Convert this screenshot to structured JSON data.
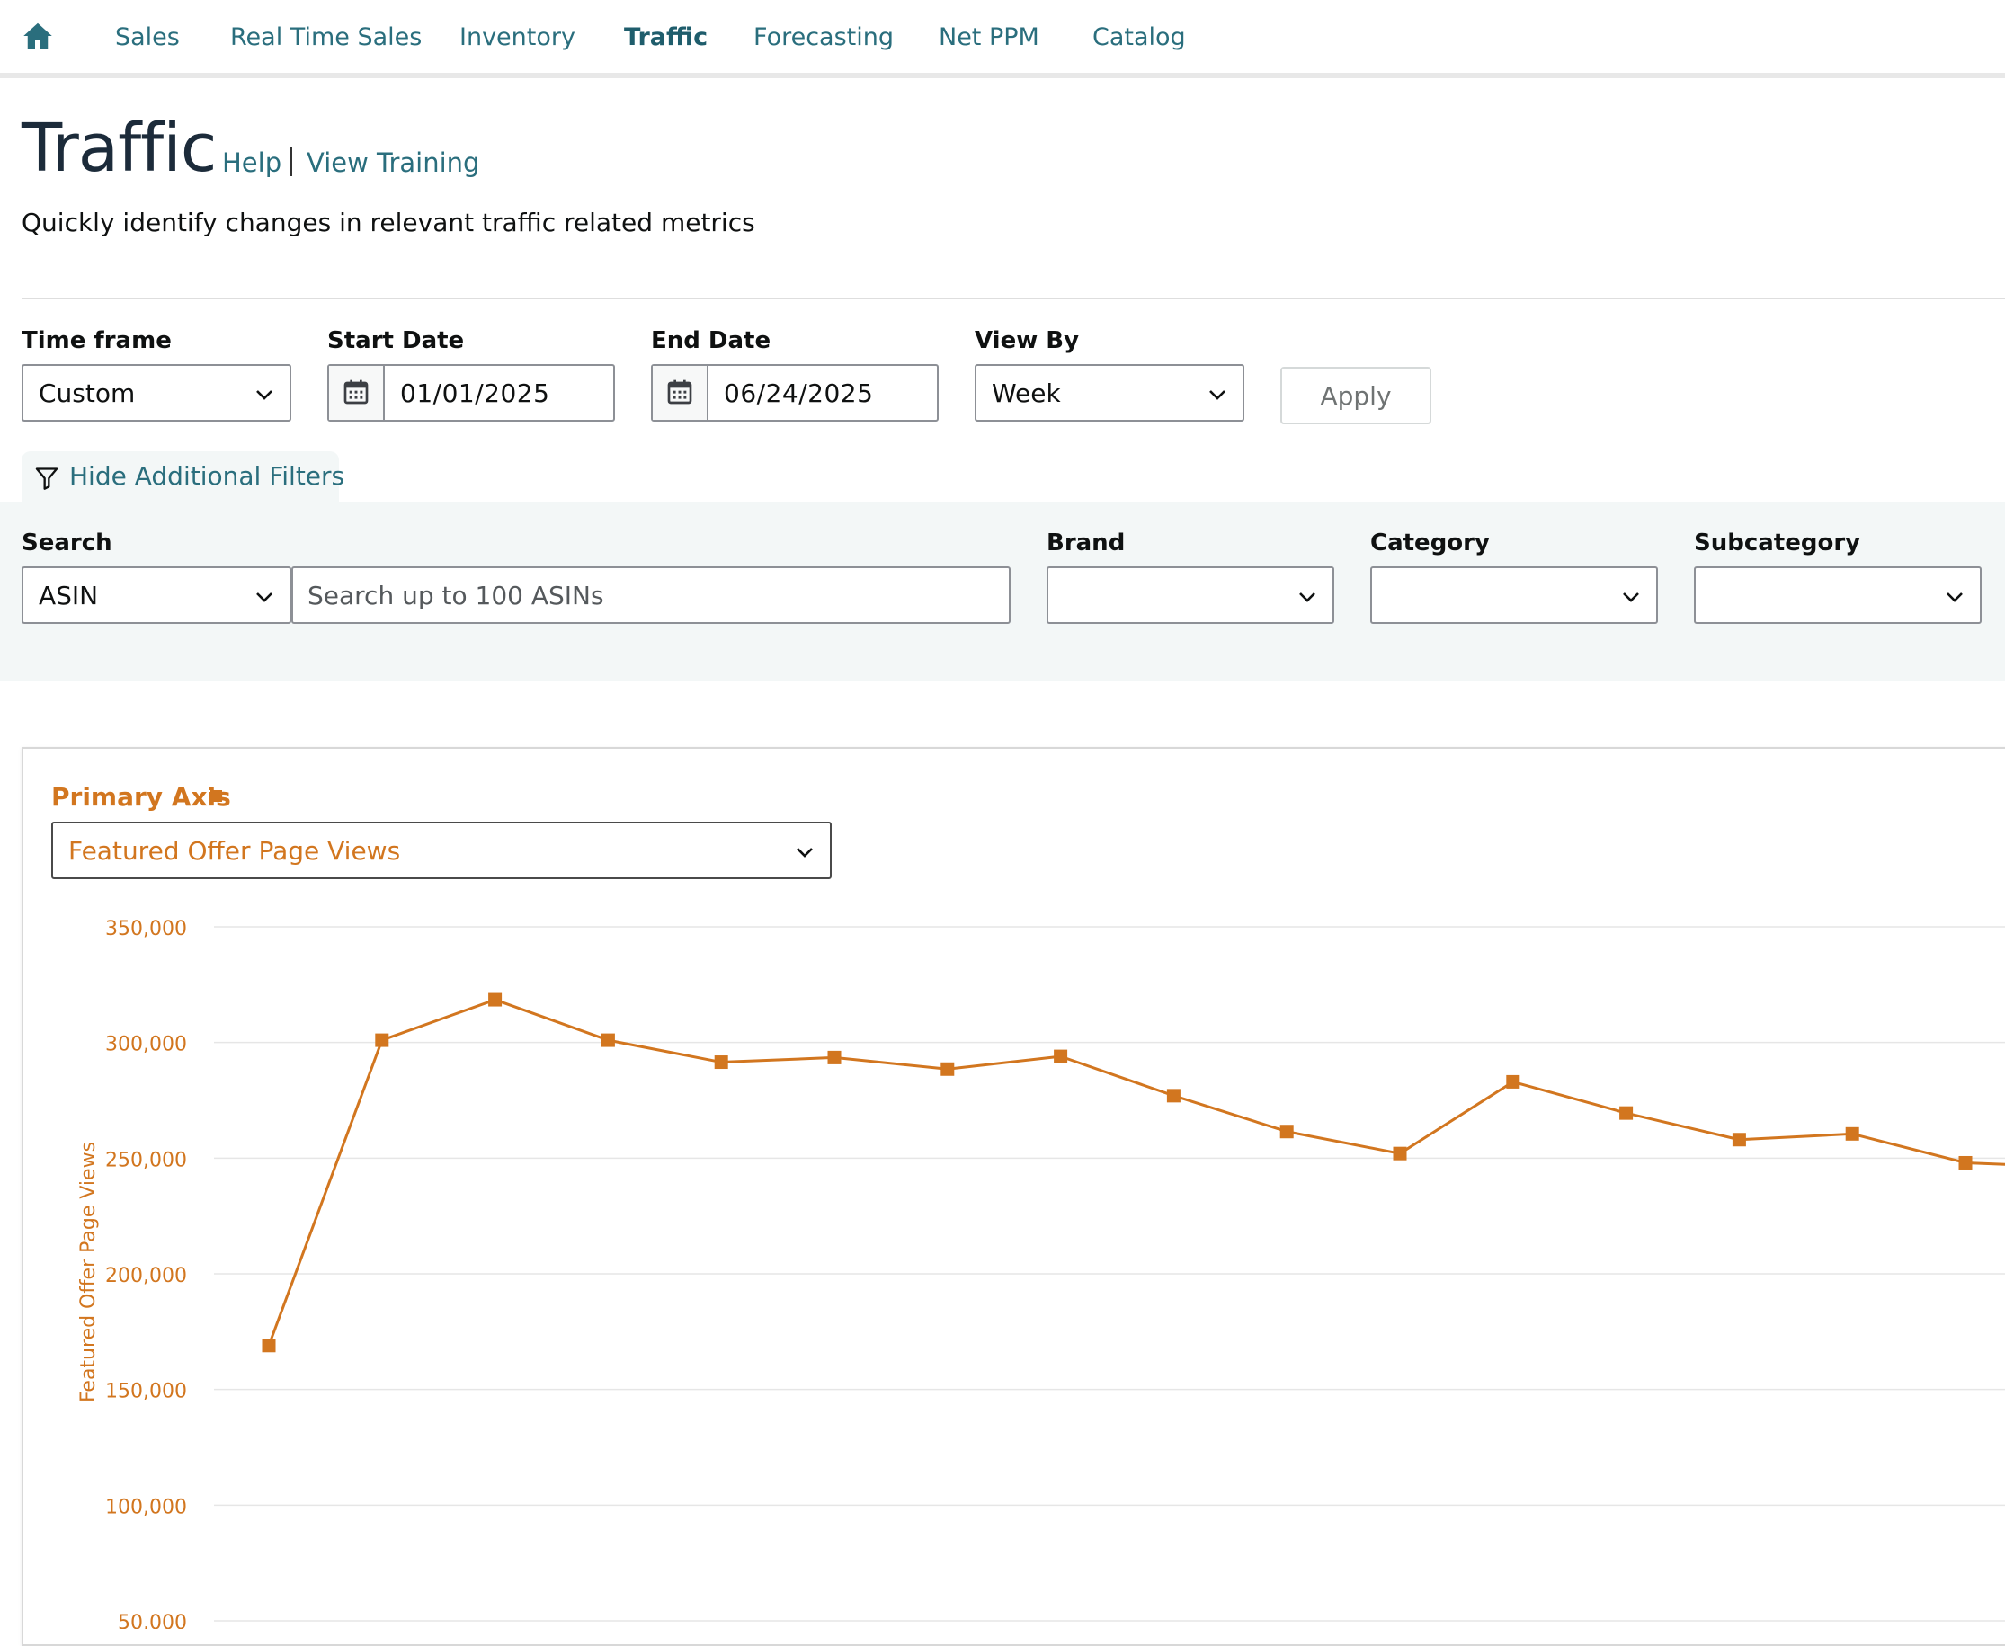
{
  "nav": {
    "items": [
      {
        "label": "Sales",
        "active": false
      },
      {
        "label": "Real Time Sales",
        "active": false
      },
      {
        "label": "Inventory",
        "active": false
      },
      {
        "label": "Traffic",
        "active": true
      },
      {
        "label": "Forecasting",
        "active": false
      },
      {
        "label": "Net PPM",
        "active": false
      },
      {
        "label": "Catalog",
        "active": false
      }
    ]
  },
  "header": {
    "title": "Traffic",
    "help_label": "Help",
    "training_label": "View Training",
    "subtitle": "Quickly identify changes in relevant traffic related metrics"
  },
  "filters": {
    "timeframe": {
      "label": "Time frame",
      "value": "Custom"
    },
    "start_date": {
      "label": "Start Date",
      "value": "01/01/2025"
    },
    "end_date": {
      "label": "End Date",
      "value": "06/24/2025"
    },
    "view_by": {
      "label": "View By",
      "value": "Week"
    },
    "apply_label": "Apply",
    "toggle_label": "Hide Additional Filters",
    "search": {
      "label": "Search",
      "type_value": "ASIN",
      "placeholder": "Search up to 100 ASINs"
    },
    "brand": {
      "label": "Brand",
      "value": ""
    },
    "category": {
      "label": "Category",
      "value": ""
    },
    "subcategory": {
      "label": "Subcategory",
      "value": ""
    }
  },
  "chart_panel": {
    "primary_axis_label": "Primary Axis",
    "metric_value": "Featured Offer Page Views"
  },
  "colors": {
    "accent": "#d2761f",
    "link": "#2a6e7d",
    "gridline": "#e6e6e6"
  },
  "chart_data": {
    "type": "line",
    "ylabel": "Featured Offer Page Views",
    "ylim": [
      50000,
      350000
    ],
    "yticks": [
      350000,
      300000,
      250000,
      200000,
      150000,
      100000,
      50000
    ],
    "ytick_labels": [
      "350,000",
      "300,000",
      "250,000",
      "200,000",
      "150,000",
      "100,000",
      "50,000"
    ],
    "grid": true,
    "series": [
      {
        "color": "#d2761f",
        "marker": "square",
        "values": [
          169000,
          301000,
          318500,
          301000,
          291500,
          293500,
          288500,
          294000,
          277000,
          261500,
          252000,
          283000,
          269500,
          258000,
          260500,
          248000,
          246000
        ]
      }
    ]
  }
}
